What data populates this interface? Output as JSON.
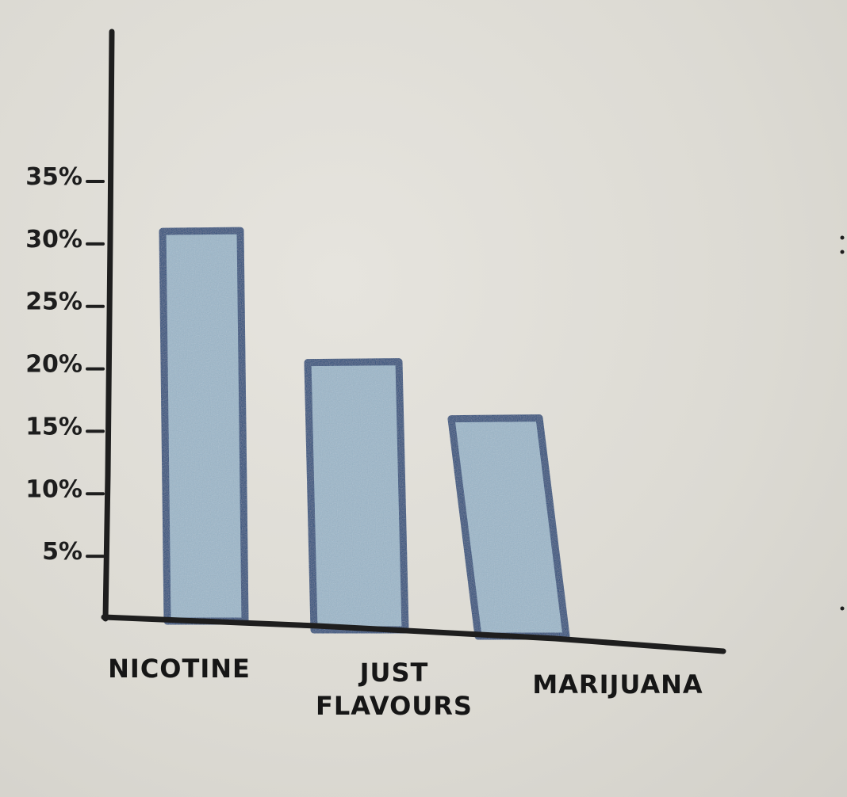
{
  "chart_data": {
    "type": "bar",
    "categories": [
      "NICOTINE",
      "JUST FLAVOURS",
      "MARIJUANA"
    ],
    "category_lines": [
      [
        "NICOTINE"
      ],
      [
        "JUST",
        "FLAVOURS"
      ],
      [
        "MARIJUANA"
      ]
    ],
    "values": [
      31,
      20.5,
      16
    ],
    "yticks": [
      5,
      10,
      15,
      20,
      25,
      30,
      35
    ],
    "ytick_labels": [
      "5%",
      "10%",
      "15%",
      "20%",
      "25%",
      "30%",
      "35%"
    ],
    "ylim": [
      0,
      35
    ],
    "grid": false,
    "title": "",
    "xlabel": "",
    "ylabel": "",
    "colors": {
      "bar_fill": "#9bb7cb",
      "bar_outline": "#1f4a7c",
      "axis": "#1e1e1e",
      "ink": "#181818"
    }
  }
}
